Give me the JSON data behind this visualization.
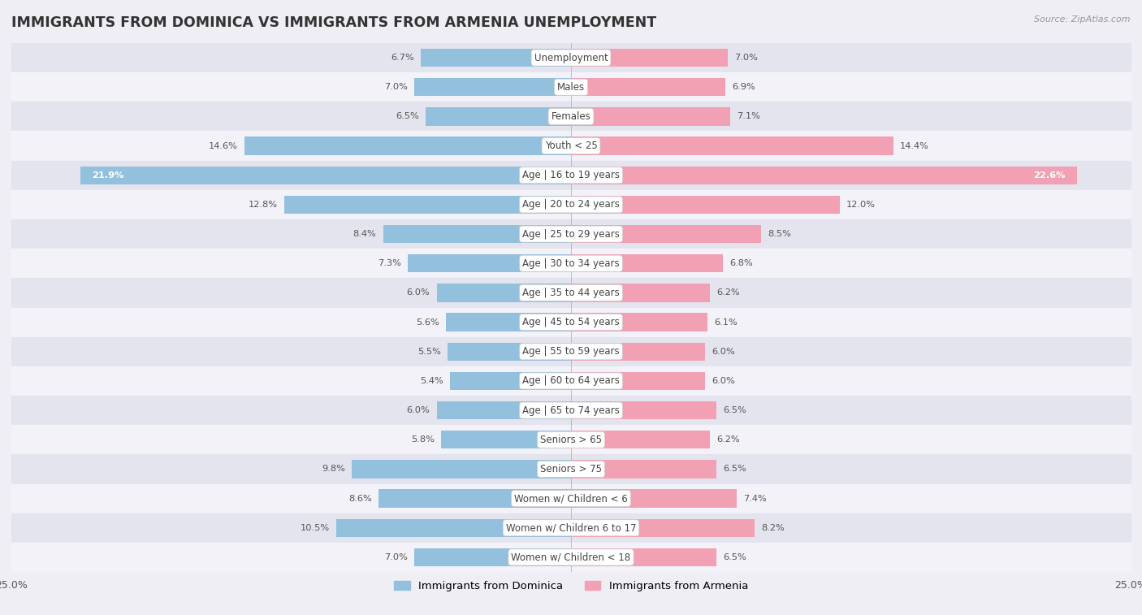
{
  "title": "IMMIGRANTS FROM DOMINICA VS IMMIGRANTS FROM ARMENIA UNEMPLOYMENT",
  "source": "Source: ZipAtlas.com",
  "categories": [
    "Unemployment",
    "Males",
    "Females",
    "Youth < 25",
    "Age | 16 to 19 years",
    "Age | 20 to 24 years",
    "Age | 25 to 29 years",
    "Age | 30 to 34 years",
    "Age | 35 to 44 years",
    "Age | 45 to 54 years",
    "Age | 55 to 59 years",
    "Age | 60 to 64 years",
    "Age | 65 to 74 years",
    "Seniors > 65",
    "Seniors > 75",
    "Women w/ Children < 6",
    "Women w/ Children 6 to 17",
    "Women w/ Children < 18"
  ],
  "dominica_values": [
    6.7,
    7.0,
    6.5,
    14.6,
    21.9,
    12.8,
    8.4,
    7.3,
    6.0,
    5.6,
    5.5,
    5.4,
    6.0,
    5.8,
    9.8,
    8.6,
    10.5,
    7.0
  ],
  "armenia_values": [
    7.0,
    6.9,
    7.1,
    14.4,
    22.6,
    12.0,
    8.5,
    6.8,
    6.2,
    6.1,
    6.0,
    6.0,
    6.5,
    6.2,
    6.5,
    7.4,
    8.2,
    6.5
  ],
  "dominica_color": "#92C0DD",
  "armenia_color": "#F2A0B4",
  "dominica_label": "Immigrants from Dominica",
  "armenia_label": "Immigrants from Armenia",
  "xlim": 25.0,
  "bg_color": "#EEEEF4",
  "row_color_a": "#E4E4EE",
  "row_color_b": "#F2F2F8",
  "bar_height": 0.62,
  "title_fontsize": 12.5,
  "label_fontsize": 8.5,
  "value_fontsize": 8.2
}
